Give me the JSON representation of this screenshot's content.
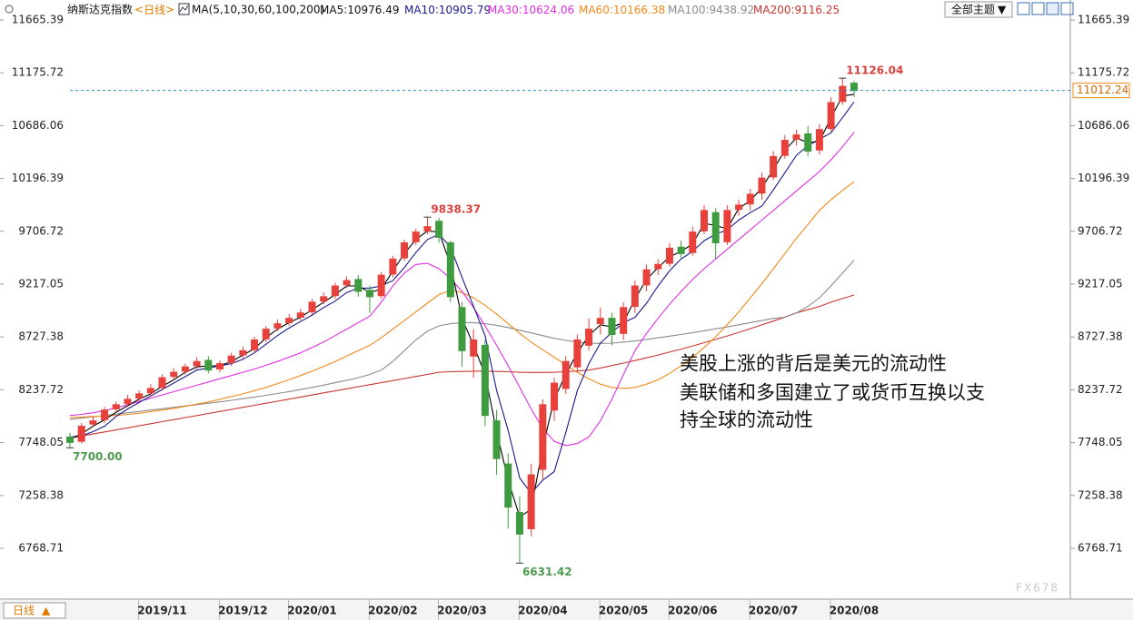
{
  "chart_data": {
    "type": "candlestick",
    "title": "纳斯达克指数",
    "period": "日线",
    "ma_label": "MA(5,10,30,60,100,200)",
    "categories": [
      null,
      null,
      null,
      null,
      null,
      null,
      null,
      null,
      "2019/11",
      null,
      null,
      null,
      null,
      null,
      null,
      "2019/12",
      null,
      null,
      null,
      null,
      null,
      "2020/01",
      null,
      null,
      null,
      null,
      null,
      null,
      "2020/02",
      null,
      null,
      null,
      null,
      null,
      "2020/03",
      null,
      null,
      null,
      null,
      null,
      null,
      "2020/04",
      null,
      null,
      null,
      null,
      null,
      null,
      "2020/05",
      null,
      null,
      null,
      null,
      null,
      "2020/06",
      null,
      null,
      null,
      null,
      null,
      null,
      "2020/07",
      null,
      null,
      null,
      null,
      null,
      null,
      "2020/08"
    ],
    "open": [
      7800,
      7760,
      7920,
      7960,
      8060,
      8110,
      8160,
      8210,
      8260,
      8360,
      8410,
      8460,
      8510,
      8430,
      8490,
      8560,
      8610,
      8710,
      8810,
      8860,
      8910,
      8960,
      9060,
      9110,
      9210,
      9260,
      9160,
      9110,
      9310,
      9460,
      9610,
      9710,
      9800,
      9600,
      9000,
      8550,
      8650,
      7950,
      7550,
      7100,
      6950,
      7500,
      8050,
      8250,
      8450,
      8650,
      8850,
      8900,
      8760,
      9010,
      9210,
      9360,
      9410,
      9560,
      9510,
      9710,
      9880,
      9610,
      9910,
      9960,
      10060,
      10210,
      10410,
      10560,
      10610,
      10460,
      10660,
      10910,
      11080
    ],
    "high": [
      7840,
      7930,
      7990,
      8080,
      8130,
      8190,
      8230,
      8290,
      8380,
      8440,
      8480,
      8540,
      8550,
      8510,
      8580,
      8640,
      8730,
      8830,
      8890,
      8940,
      8990,
      9080,
      9140,
      9230,
      9290,
      9300,
      9200,
      9330,
      9480,
      9630,
      9730,
      9838.37,
      9830,
      9620,
      9050,
      8800,
      8700,
      8050,
      7650,
      7250,
      7550,
      8150,
      8350,
      8550,
      8750,
      8900,
      9000,
      8950,
      9050,
      9250,
      9400,
      9450,
      9600,
      9620,
      9750,
      9950,
      9920,
      9950,
      10000,
      10100,
      10250,
      10450,
      10600,
      10650,
      10680,
      10700,
      10950,
      11126.04,
      11100
    ],
    "low": [
      7700,
      7740,
      7890,
      7930,
      8030,
      8080,
      8130,
      8180,
      8230,
      8330,
      8380,
      8430,
      8390,
      8400,
      8460,
      8530,
      8580,
      8680,
      8780,
      8830,
      8880,
      8930,
      9030,
      9080,
      9180,
      9100,
      8950,
      9080,
      9280,
      9430,
      9580,
      9680,
      9600,
      9050,
      8450,
      8350,
      7900,
      7450,
      6950,
      6631.42,
      6880,
      7400,
      7950,
      8200,
      8400,
      8600,
      8750,
      8650,
      8700,
      8950,
      9150,
      9300,
      9380,
      9450,
      9480,
      9680,
      9450,
      9580,
      9850,
      9900,
      10000,
      10180,
      10380,
      10500,
      10400,
      10420,
      10630,
      10880,
      10950
    ],
    "close": [
      7750,
      7900,
      7950,
      8050,
      8100,
      8150,
      8200,
      8250,
      8350,
      8400,
      8450,
      8500,
      8420,
      8480,
      8550,
      8600,
      8700,
      8800,
      8850,
      8900,
      8950,
      9050,
      9100,
      9200,
      9250,
      9150,
      9100,
      9300,
      9450,
      9600,
      9700,
      9750,
      9650,
      9100,
      8600,
      8700,
      8000,
      7600,
      7150,
      6900,
      7450,
      8100,
      8300,
      8500,
      8700,
      8800,
      8900,
      8750,
      9000,
      9200,
      9350,
      9400,
      9550,
      9500,
      9700,
      9900,
      9600,
      9900,
      9950,
      10050,
      10200,
      10400,
      10550,
      10600,
      10450,
      10650,
      10900,
      11050,
      11012.24
    ],
    "high_labels": {
      "31": "9838.37",
      "67": "11126.04"
    },
    "low_labels": {
      "0": "7700.00",
      "39": "6631.42"
    },
    "up_color": "#e8413c",
    "down_color": "#3f9b3f",
    "label_up_color": "#d9413c",
    "label_down_color": "#4e9a4e",
    "last_price_line": true,
    "series": [
      {
        "name": "MA5",
        "color": "#000000",
        "values": [
          7780,
          7830,
          7900,
          7960,
          8030,
          8090,
          8150,
          8200,
          8270,
          8330,
          8400,
          8450,
          8460,
          8460,
          8500,
          8560,
          8620,
          8720,
          8800,
          8860,
          8910,
          8980,
          9050,
          9120,
          9200,
          9200,
          9140,
          9170,
          9340,
          9500,
          9630,
          9710,
          9700,
          9400,
          8900,
          8650,
          8380,
          7850,
          7400,
          7060,
          7130,
          7700,
          8150,
          8380,
          8580,
          8740,
          8840,
          8820,
          8860,
          9080,
          9260,
          9370,
          9470,
          9520,
          9590,
          9780,
          9760,
          9730,
          9920,
          9990,
          10110,
          10280,
          10460,
          10570,
          10530,
          10540,
          10760,
          10960,
          10976.49
        ]
      },
      {
        "name": "MA10",
        "color": "#1a1a8c",
        "values": [
          7800,
          7810,
          7850,
          7900,
          7990,
          8060,
          8120,
          8180,
          8240,
          8300,
          8360,
          8420,
          8440,
          8460,
          8480,
          8520,
          8580,
          8660,
          8740,
          8810,
          8870,
          8930,
          9000,
          9060,
          9140,
          9180,
          9180,
          9200,
          9250,
          9370,
          9510,
          9630,
          9680,
          9560,
          9280,
          9010,
          8740,
          8230,
          7860,
          7420,
          7280,
          7400,
          7480,
          7840,
          8230,
          8480,
          8670,
          8770,
          8860,
          8910,
          9040,
          9200,
          9340,
          9450,
          9520,
          9620,
          9680,
          9720,
          9810,
          9880,
          9940,
          10090,
          10250,
          10410,
          10500,
          10560,
          10620,
          10760,
          10905.79
        ]
      },
      {
        "name": "MA30",
        "color": "#e02ee0",
        "values": [
          8000,
          8010,
          8025,
          8045,
          8070,
          8100,
          8130,
          8160,
          8190,
          8220,
          8250,
          8280,
          8310,
          8340,
          8370,
          8400,
          8430,
          8465,
          8500,
          8540,
          8580,
          8630,
          8680,
          8740,
          8800,
          8860,
          8920,
          9050,
          9200,
          9320,
          9400,
          9410,
          9360,
          9270,
          9150,
          9000,
          8830,
          8650,
          8460,
          8260,
          8060,
          7880,
          7760,
          7720,
          7740,
          7800,
          7950,
          8150,
          8380,
          8600,
          8760,
          8900,
          9030,
          9150,
          9260,
          9360,
          9450,
          9540,
          9630,
          9720,
          9810,
          9900,
          9990,
          10080,
          10170,
          10260,
          10370,
          10490,
          10624.06
        ]
      },
      {
        "name": "MA60",
        "color": "#f08a1c",
        "values": [
          7980,
          7985,
          7990,
          7995,
          8000,
          8010,
          8020,
          8035,
          8050,
          8065,
          8085,
          8105,
          8125,
          8150,
          8175,
          8200,
          8230,
          8260,
          8295,
          8330,
          8370,
          8410,
          8455,
          8500,
          8550,
          8600,
          8650,
          8720,
          8800,
          8880,
          8960,
          9040,
          9120,
          9160,
          9140,
          9090,
          9020,
          8940,
          8850,
          8760,
          8680,
          8610,
          8540,
          8470,
          8400,
          8340,
          8290,
          8260,
          8250,
          8260,
          8290,
          8330,
          8390,
          8460,
          8540,
          8630,
          8730,
          8840,
          8960,
          9090,
          9220,
          9360,
          9500,
          9640,
          9770,
          9900,
          10000,
          10085,
          10166.38
        ]
      },
      {
        "name": "MA100",
        "color": "#8c8c8c",
        "values": [
          7963,
          7975,
          7988,
          8000,
          8012,
          8025,
          8037,
          8050,
          8062,
          8075,
          8088,
          8100,
          8113,
          8126,
          8140,
          8155,
          8170,
          8186,
          8203,
          8221,
          8240,
          8260,
          8281,
          8303,
          8326,
          8350,
          8380,
          8420,
          8500,
          8600,
          8700,
          8780,
          8830,
          8850,
          8860,
          8860,
          8850,
          8835,
          8815,
          8790,
          8765,
          8740,
          8715,
          8695,
          8680,
          8670,
          8668,
          8670,
          8680,
          8690,
          8705,
          8720,
          8735,
          8750,
          8768,
          8785,
          8803,
          8820,
          8840,
          8860,
          8880,
          8900,
          8910,
          8950,
          9010,
          9090,
          9200,
          9320,
          9438.92
        ]
      },
      {
        "name": "MA200",
        "color": "#c8362e",
        "values": [
          7790,
          7809,
          7828,
          7847,
          7866,
          7885,
          7904,
          7923,
          7942,
          7961,
          7980,
          7999,
          8018,
          8037,
          8056,
          8075,
          8094,
          8113,
          8132,
          8151,
          8170,
          8190,
          8209,
          8228,
          8247,
          8266,
          8285,
          8304,
          8323,
          8342,
          8361,
          8380,
          8400,
          8405,
          8408,
          8410,
          8410,
          8408,
          8405,
          8400,
          8398,
          8398,
          8400,
          8405,
          8412,
          8420,
          8440,
          8462,
          8485,
          8509,
          8534,
          8560,
          8587,
          8615,
          8644,
          8674,
          8705,
          8737,
          8770,
          8804,
          8839,
          8875,
          8912,
          8950,
          8980,
          9010,
          9050,
          9083,
          9116.25
        ]
      }
    ],
    "ylim": [
      6297.55,
      11850.49
    ],
    "yticks": [
      11665.39,
      11175.72,
      10686.06,
      10196.39,
      9706.72,
      9217.05,
      8727.38,
      8237.72,
      7748.05,
      7258.38,
      6768.71
    ],
    "annotations": [
      "美股上涨的背后是美元的流动性",
      "美联储和多国建立了或货币互换以支",
      "持全球的流动性"
    ]
  },
  "ui": {
    "theme_menu": "全部主题",
    "watermark": "FX678"
  }
}
